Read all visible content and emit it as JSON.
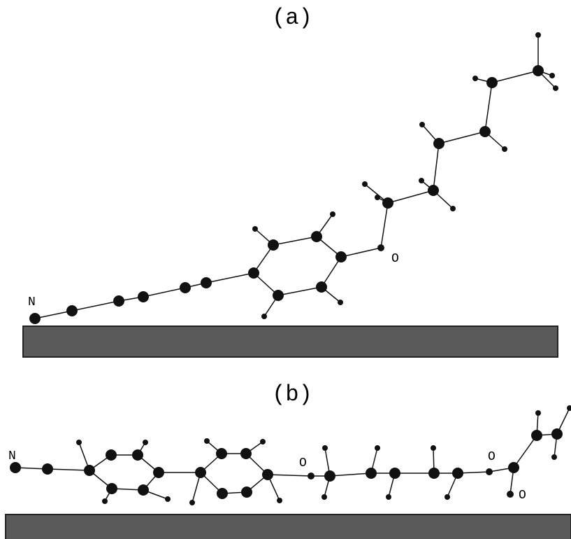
{
  "panels": [
    {
      "label": "(a)",
      "atom_labels": [
        "N",
        "O"
      ]
    },
    {
      "label": "(b)",
      "atom_labels": [
        "N",
        "O",
        "O",
        "O"
      ]
    }
  ]
}
